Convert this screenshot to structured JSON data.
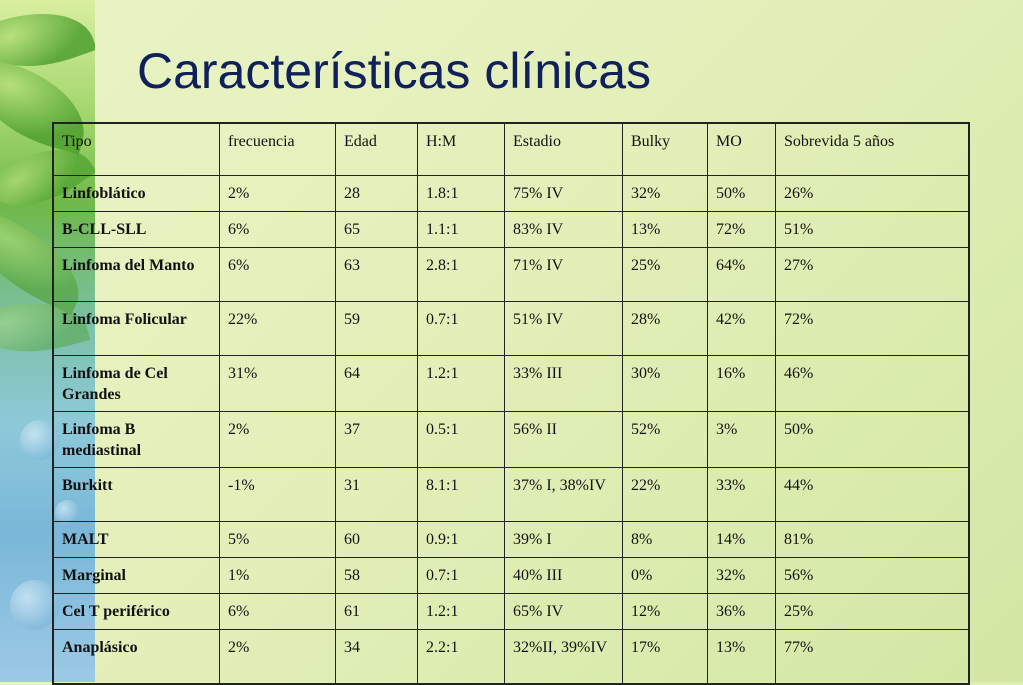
{
  "slide": {
    "title": "Características clínicas"
  },
  "table": {
    "headers": [
      "Tipo",
      "frecuencia",
      "Edad",
      "H:M",
      "Estadio",
      "Bulky",
      "MO",
      "Sobrevida 5 años"
    ],
    "rows": [
      [
        "Linfoblático",
        "2%",
        "28",
        "1.8:1",
        "75% IV",
        "32%",
        "50%",
        "26%"
      ],
      [
        "B-CLL-SLL",
        "6%",
        "65",
        "1.1:1",
        "83% IV",
        "13%",
        "72%",
        "51%"
      ],
      [
        "Linfoma del Manto",
        "6%",
        "63",
        "2.8:1",
        "71% IV",
        "25%",
        "64%",
        "27%"
      ],
      [
        "Linfoma Folicular",
        "22%",
        "59",
        "0.7:1",
        "51% IV",
        "28%",
        "42%",
        "72%"
      ],
      [
        "Linfoma de Cel Grandes",
        "31%",
        "64",
        "1.2:1",
        "33% III",
        "30%",
        "16%",
        "46%"
      ],
      [
        "Linfoma B mediastinal",
        "2%",
        "37",
        "0.5:1",
        "56% II",
        "52%",
        "3%",
        "50%"
      ],
      [
        "Burkitt",
        "-1%",
        "31",
        "8.1:1",
        "37% I, 38%IV",
        "22%",
        "33%",
        "44%"
      ],
      [
        "MALT",
        "5%",
        "60",
        "0.9:1",
        "39% I",
        "8%",
        "14%",
        "81%"
      ],
      [
        "Marginal",
        "1%",
        "58",
        "0.7:1",
        "40% III",
        "0%",
        "32%",
        "56%"
      ],
      [
        "Cel T periférico",
        "6%",
        "61",
        "1.2:1",
        "65% IV",
        "12%",
        "36%",
        "25%"
      ],
      [
        "Anaplásico",
        "2%",
        "34",
        "2.2:1",
        "32%II, 39%IV",
        "17%",
        "13%",
        "77%"
      ]
    ]
  },
  "colors": {
    "title": "#10205a",
    "border": "#222222",
    "background": "#e4f0bb"
  }
}
